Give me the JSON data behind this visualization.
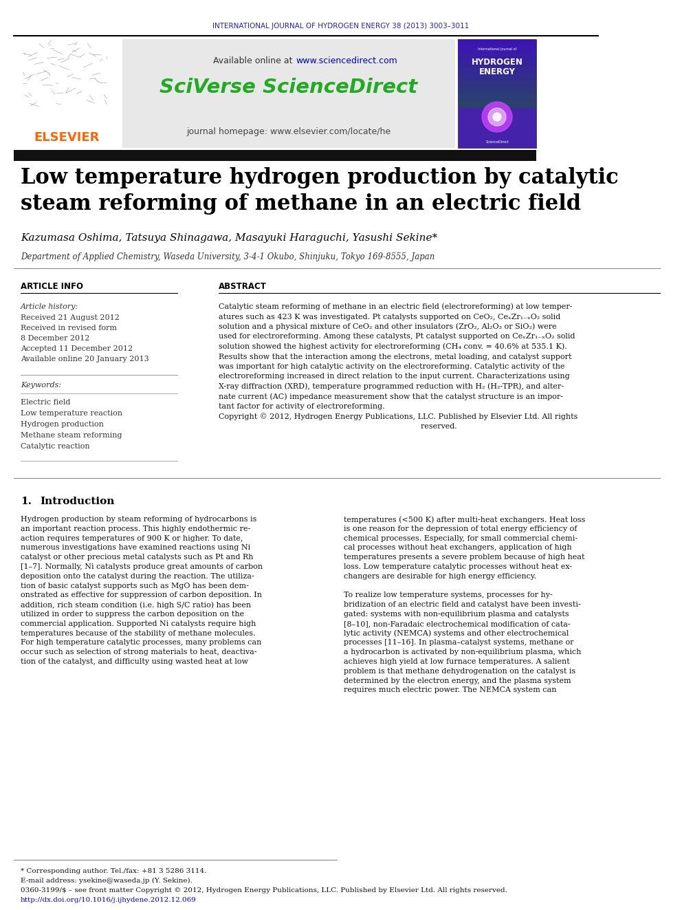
{
  "journal_header": "INTERNATIONAL JOURNAL OF HYDROGEN ENERGY 38 (2013) 3003–3011",
  "journal_header_color": "#2222cc",
  "available_online_text": "Available online at ",
  "sciencedirect_url": "www.sciencedirect.com",
  "sciencedirect_url_color": "#0000cc",
  "sciverse_text": "SciVerse ScienceDirect",
  "sciverse_color": "#22aa22",
  "journal_homepage_text": "journal homepage: www.elsevier.com/locate/he",
  "elsevier_color": "#ff6600",
  "title_line1": "Low temperature hydrogen production by catalytic",
  "title_line2": "steam reforming of methane in an electric field",
  "authors": "Kazumasa Oshima, Tatsuya Shinagawa, Masayuki Haraguchi, Yasushi Sekine",
  "affiliation": "Department of Applied Chemistry, Waseda University, 3-4-1 Okubo, Shinjuku, Tokyo 169-8555, Japan",
  "article_info_label": "ARTICLE INFO",
  "abstract_label": "ABSTRACT",
  "article_history_label": "Article history:",
  "received_1": "Received 21 August 2012",
  "received_revised": "Received in revised form",
  "received_revised_date": "8 December 2012",
  "accepted": "Accepted 11 December 2012",
  "available_online": "Available online 20 January 2013",
  "keywords_label": "Keywords:",
  "keyword1": "Electric field",
  "keyword2": "Low temperature reaction",
  "keyword3": "Hydrogen production",
  "keyword4": "Methane steam reforming",
  "keyword5": "Catalytic reaction",
  "footnote_1": "* Corresponding author. Tel./fax: +81 3 5286 3114.",
  "footnote_2": "E-mail address: ysekine@waseda.jp (Y. Sekine).",
  "footnote_3": "0360-3199/$ – see front matter Copyright © 2012, Hydrogen Energy Publications, LLC. Published by Elsevier Ltd. All rights reserved.",
  "footnote_doi": "http://dx.doi.org/10.1016/j.ijhydene.2012.12.069",
  "doi_color": "#0000cc",
  "bg_color": "#ffffff"
}
